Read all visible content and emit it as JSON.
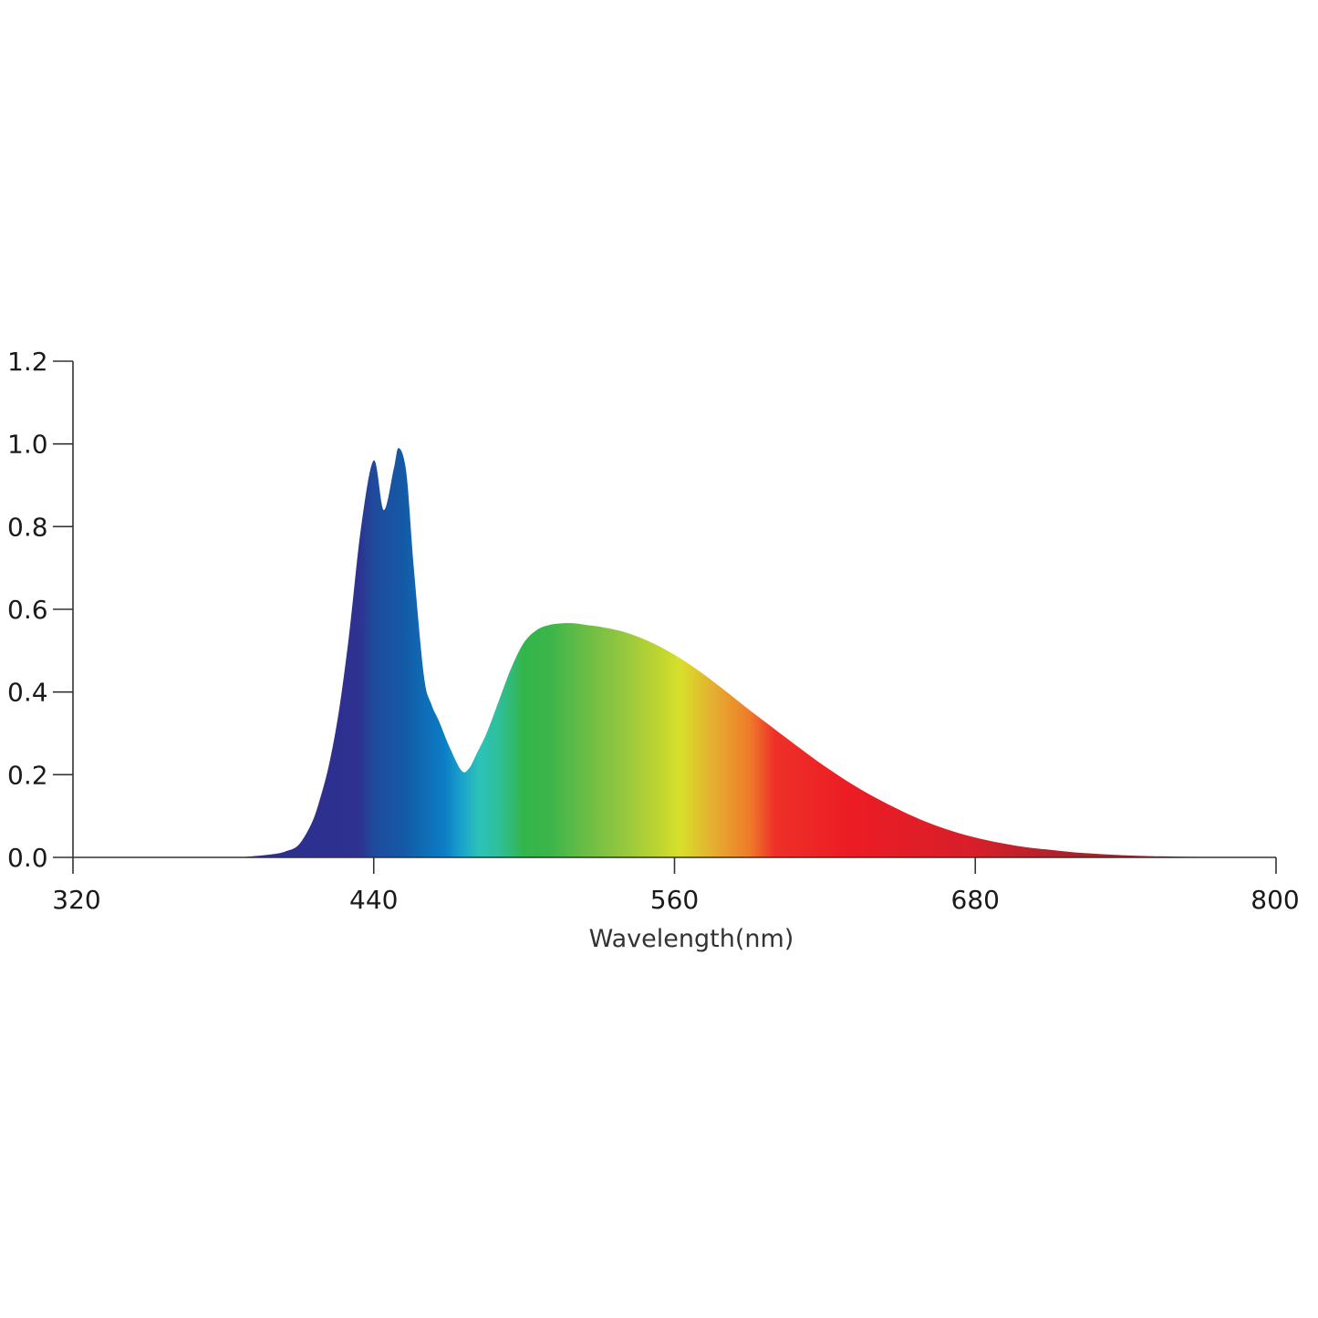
{
  "chart_data": {
    "type": "area",
    "title": "",
    "xlabel": "Wavelength(nm)",
    "ylabel": "",
    "xlim": [
      320,
      800
    ],
    "ylim": [
      0,
      1.2
    ],
    "x_ticks": [
      "320",
      "440",
      "560",
      "680",
      "800"
    ],
    "y_ticks": [
      "0.0",
      "0.2",
      "0.4",
      "0.6",
      "0.8",
      "1.0",
      "1.2"
    ],
    "grid": false,
    "legend": "none",
    "series": [
      {
        "x": [
          320,
          380,
          390,
          400,
          405,
          410,
          415,
          418,
          422,
          426,
          430,
          435,
          440,
          444,
          448,
          450,
          453,
          456,
          460,
          463,
          466,
          470,
          475,
          478,
          481,
          485,
          490,
          495,
          500,
          505,
          510,
          515,
          520,
          525,
          530,
          540,
          550,
          560,
          570,
          580,
          590,
          600,
          610,
          620,
          630,
          640,
          650,
          660,
          670,
          680,
          690,
          700,
          710,
          720,
          730,
          740,
          750,
          760,
          770,
          780,
          790,
          800
        ],
        "y": [
          0.0,
          0.0,
          0.002,
          0.008,
          0.015,
          0.03,
          0.08,
          0.13,
          0.22,
          0.35,
          0.53,
          0.8,
          0.96,
          0.84,
          0.94,
          0.99,
          0.93,
          0.7,
          0.44,
          0.37,
          0.33,
          0.27,
          0.21,
          0.215,
          0.25,
          0.3,
          0.38,
          0.46,
          0.52,
          0.55,
          0.562,
          0.566,
          0.566,
          0.562,
          0.558,
          0.545,
          0.522,
          0.49,
          0.45,
          0.404,
          0.356,
          0.31,
          0.264,
          0.22,
          0.18,
          0.145,
          0.114,
          0.087,
          0.065,
          0.048,
          0.035,
          0.025,
          0.018,
          0.012,
          0.008,
          0.005,
          0.003,
          0.002,
          0.001,
          0.0005,
          0.0002,
          0.0
        ]
      }
    ],
    "spectrum_gradient": [
      {
        "nm": 320,
        "color": "#2a2a8a"
      },
      {
        "nm": 420,
        "color": "#2e3090"
      },
      {
        "nm": 434,
        "color": "#2e3190"
      },
      {
        "nm": 440,
        "color": "#1f4a9c"
      },
      {
        "nm": 452,
        "color": "#145aa6"
      },
      {
        "nm": 468,
        "color": "#0b7dc4"
      },
      {
        "nm": 475,
        "color": "#1aa2cc"
      },
      {
        "nm": 482,
        "color": "#2cc2b8"
      },
      {
        "nm": 490,
        "color": "#2fbf9a"
      },
      {
        "nm": 500,
        "color": "#33b54a"
      },
      {
        "nm": 510,
        "color": "#3bb54a"
      },
      {
        "nm": 525,
        "color": "#6cbd45"
      },
      {
        "nm": 540,
        "color": "#96c83f"
      },
      {
        "nm": 555,
        "color": "#c2d62f"
      },
      {
        "nm": 562,
        "color": "#d7e02b"
      },
      {
        "nm": 575,
        "color": "#e5b030"
      },
      {
        "nm": 590,
        "color": "#ee7b2a"
      },
      {
        "nm": 600,
        "color": "#ee3028"
      },
      {
        "nm": 630,
        "color": "#ec1c24"
      },
      {
        "nm": 680,
        "color": "#d61f2a"
      },
      {
        "nm": 720,
        "color": "#a6242c"
      },
      {
        "nm": 800,
        "color": "#8a2a2a"
      }
    ]
  }
}
